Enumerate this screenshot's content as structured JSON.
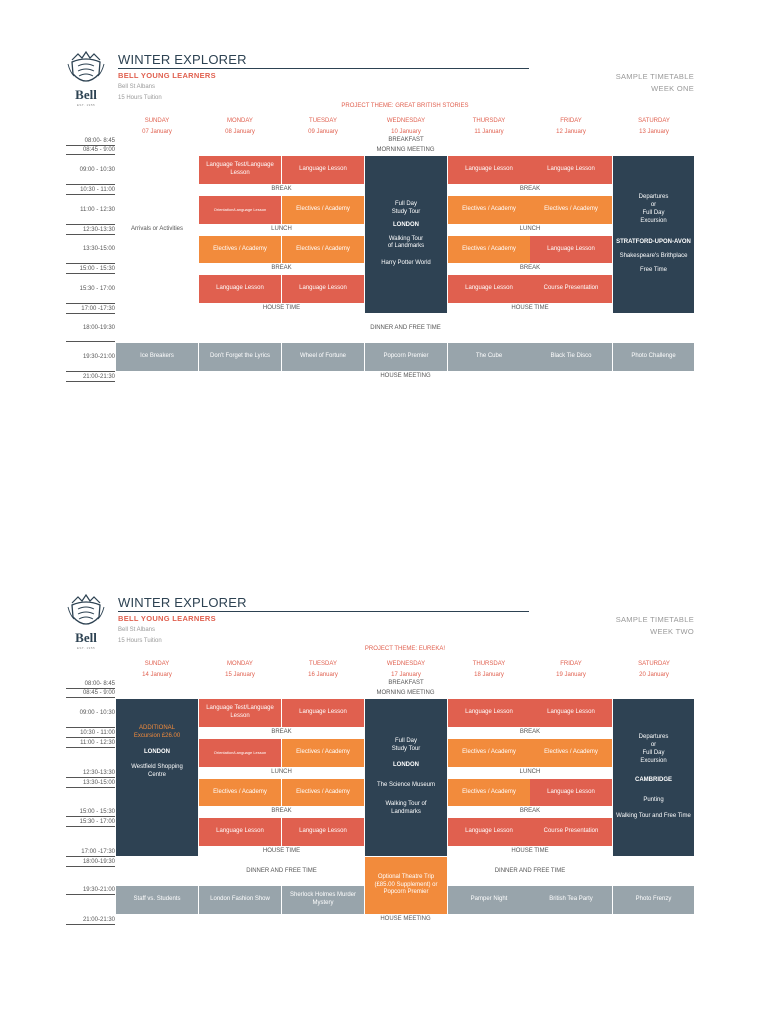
{
  "pages": [
    {
      "title": "WINTER EXPLORER",
      "subtitle": "BELL YOUNG LEARNERS",
      "school": "Bell St Albans",
      "tuition": "15 Hours Tuition",
      "sample": "SAMPLE TIMETABLE",
      "week": "WEEK ONE",
      "theme": "PROJECT THEME: GREAT BRITISH STORIES",
      "logo": {
        "word": "Bell",
        "est": "EST. 1955"
      },
      "days": [
        {
          "name": "SUNDAY",
          "date": "07 January"
        },
        {
          "name": "MONDAY",
          "date": "08 January"
        },
        {
          "name": "TUESDAY",
          "date": "09 January"
        },
        {
          "name": "WEDNESDAY",
          "date": "10 January"
        },
        {
          "name": "THURSDAY",
          "date": "11 January"
        },
        {
          "name": "FRIDAY",
          "date": "12 January"
        },
        {
          "name": "SATURDAY",
          "date": "13 January"
        }
      ],
      "times": [
        "08:00- 8:45",
        "08:45 - 9:00",
        "09:00 - 10:30",
        "10:30 - 11:00",
        "11:00 - 12:30",
        "12:30-13:30",
        "13:30-15:00",
        "15:00 - 15:30",
        "15:30 - 17:00",
        "17:00 -17:30",
        "18:00-19:30",
        "19:30-21:00",
        "21:00-21:30"
      ],
      "labels": {
        "breakfast": "BREAKFAST",
        "morning_meeting": "MORNING MEETING",
        "break": "BREAK",
        "lunch": "LUNCH",
        "house_time": "HOUSE TIME",
        "dinner": "DINNER AND FREE TIME",
        "house_meeting": "HOUSE MEETING",
        "lang_test": "Language Test/Language Lesson",
        "lang": "Language Lesson",
        "orientation": "Orientation/Language Lesson",
        "electives": "Electives / Academy",
        "course": "Course Presentation"
      },
      "sunday": "Arrivals or Activities",
      "wednesday": {
        "l1": "Full Day",
        "l2": "Study Tour",
        "l3": "LONDON",
        "l4": "Walking Tour",
        "l5": "of Landmarks",
        "l6": "Harry Potter World"
      },
      "saturday": {
        "l1": "Departures",
        "l2": "or",
        "l3": "Full Day",
        "l4": "Excursion",
        "l5": "STRATFORD-UPON-AVON",
        "l6": "Shakespeare's Brithplace",
        "l7": "Free Time"
      },
      "evening": [
        "Ice Breakers",
        "Don't Forget the Lyrics",
        "Wheel of Fortune",
        "Popcorn Premier",
        "The Cube",
        "Black Tie Disco",
        "Photo Challenge"
      ]
    },
    {
      "title": "WINTER EXPLORER",
      "subtitle": "BELL YOUNG LEARNERS",
      "school": "Bell St Albans",
      "tuition": "15 Hours Tuition",
      "sample": "SAMPLE TIMETABLE",
      "week": "WEEK TWO",
      "theme": "PROJECT THEME: EUREKA!",
      "logo": {
        "word": "Bell",
        "est": "EST. 1955"
      },
      "days": [
        {
          "name": "SUNDAY",
          "date": "14 January"
        },
        {
          "name": "MONDAY",
          "date": "15 January"
        },
        {
          "name": "TUESDAY",
          "date": "16 January"
        },
        {
          "name": "WEDNESDAY",
          "date": "17 January"
        },
        {
          "name": "THURSDAY",
          "date": "18 January"
        },
        {
          "name": "FRIDAY",
          "date": "19 January"
        },
        {
          "name": "SATURDAY",
          "date": "20 January"
        }
      ],
      "times": [
        "08:00- 8:45",
        "08:45 - 9:00",
        "09:00 - 10:30",
        "10:30 - 11:00",
        "11:00 - 12:30",
        "12:30-13:30",
        "13:30-15:00",
        "15:00 - 15:30",
        "15:30 - 17:00",
        "17:00 -17:30",
        "18:00-19:30",
        "19:30-21:00",
        "21:00-21:30"
      ],
      "labels": {
        "breakfast": "BREAKFAST",
        "morning_meeting": "MORNING MEETING",
        "break": "BREAK",
        "lunch": "LUNCH",
        "house_time": "HOUSE TIME",
        "dinner": "DINNER AND FREE TIME",
        "house_meeting": "HOUSE MEETING",
        "lang_test": "Language Test/Language Lesson",
        "lang": "Language Lesson",
        "orientation": "Orientation/Language Lesson",
        "electives": "Electives / Academy",
        "course": "Course Presentation"
      },
      "sunday": {
        "l1": "ADDITIONAL",
        "l2": "Excursion £26.00",
        "l3": "LONDON",
        "l4": "Westfield Shopping",
        "l5": "Centre"
      },
      "wednesday": {
        "l1": "Full Day",
        "l2": "Study Tour",
        "l3": "LONDON",
        "l4": "The Science Museum",
        "l5": "Walking Tour of",
        "l6": "Landmarks"
      },
      "saturday": {
        "l1": "Departures",
        "l2": "or",
        "l3": "Full Day",
        "l4": "Excursion",
        "l5": "CAMBRIDGE",
        "l6": "Punting",
        "l7": "Walking Tour and Free Time"
      },
      "theatre": "Optional Theatre Trip (£85.00 Supplement) or Popcorn Premier",
      "evening": [
        "Staff vs. Students",
        "London Fashion Show",
        "Sherlock Holmes Murder Mystery",
        "Pamper Night",
        "British Tea Party",
        "Photo Frenzy"
      ]
    }
  ],
  "colors": {
    "red": "#e0604f",
    "orange": "#f28b3c",
    "navy": "#2e4253",
    "grey": "#98a4ab",
    "heading": "#2d4252"
  },
  "icons": {
    "logo": "bell-crest-logo"
  }
}
